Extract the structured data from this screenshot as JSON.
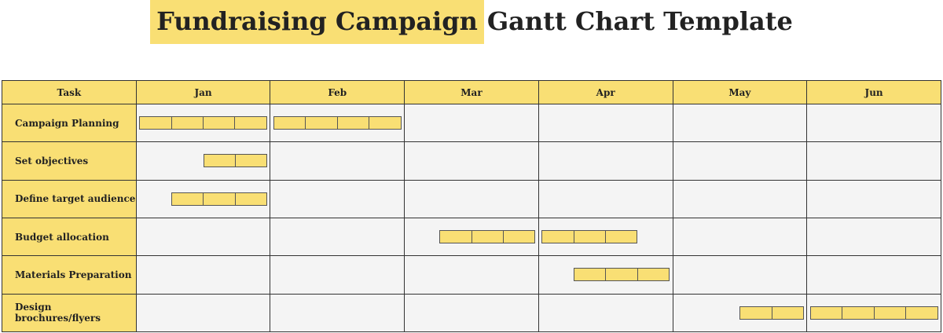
{
  "title": {
    "highlight": "Fundraising Campaign",
    "rest": "Gantt Chart Template"
  },
  "colors": {
    "accent": "#f9df74",
    "cell": "#f4f4f4",
    "border": "#333333"
  },
  "chart_data": {
    "type": "gantt",
    "task_header": "Task",
    "months": [
      "Jan",
      "Feb",
      "Mar",
      "Apr",
      "May",
      "Jun"
    ],
    "weeks_per_month": 4,
    "tasks": [
      {
        "name": "Campaign Planning",
        "spans": [
          {
            "month": "Jan",
            "start_week": 1,
            "end_week": 4
          },
          {
            "month": "Feb",
            "start_week": 1,
            "end_week": 4
          }
        ]
      },
      {
        "name": "Set objectives",
        "spans": [
          {
            "month": "Jan",
            "start_week": 3,
            "end_week": 4
          }
        ]
      },
      {
        "name": "Define target audience",
        "spans": [
          {
            "month": "Jan",
            "start_week": 2,
            "end_week": 4
          }
        ]
      },
      {
        "name": "Budget allocation",
        "spans": [
          {
            "month": "Mar",
            "start_week": 2,
            "end_week": 4
          },
          {
            "month": "Apr",
            "start_week": 1,
            "end_week": 3
          }
        ]
      },
      {
        "name": "Materials Preparation",
        "spans": [
          {
            "month": "Apr",
            "start_week": 2,
            "end_week": 4
          }
        ]
      },
      {
        "name": "Design brochures/flyers",
        "spans": [
          {
            "month": "May",
            "start_week": 3,
            "end_week": 4
          },
          {
            "month": "Jun",
            "start_week": 1,
            "end_week": 4
          }
        ]
      }
    ]
  }
}
